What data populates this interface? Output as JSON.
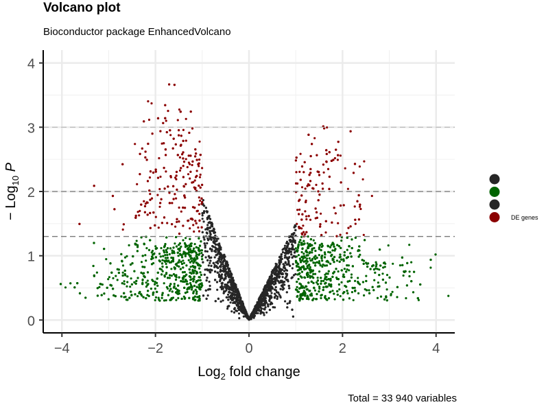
{
  "chart_data": {
    "type": "scatter",
    "title": "Volcano plot",
    "subtitle": "Bioconductor package EnhancedVolcano",
    "caption": "Total = 33 940 variables",
    "xlabel": "Log2 fold change",
    "ylabel": "-Log10 P",
    "xlim": [
      -4.4,
      4.4
    ],
    "ylim": [
      -0.2,
      4.2
    ],
    "xticks": [
      -4,
      -2,
      0,
      2,
      4
    ],
    "yticks": [
      0,
      1,
      2,
      3,
      4
    ],
    "grid": true,
    "cutoffs": {
      "pvalue_log10": [
        1.3,
        2,
        3
      ],
      "log2fc": [
        -1,
        1
      ]
    },
    "total_variables": 33940,
    "legend_position": "right",
    "legend": [
      {
        "label": "",
        "color": "#262626"
      },
      {
        "label": "",
        "color": "#006400"
      },
      {
        "label": "",
        "color": "#262626"
      },
      {
        "label": "DE genes",
        "color": "#8B0000"
      }
    ],
    "colors": {
      "ns": "#262626",
      "log2fc": "#006400",
      "p": "#262626",
      "de": "#8B0000"
    },
    "points_rendered_sample": 5000
  }
}
